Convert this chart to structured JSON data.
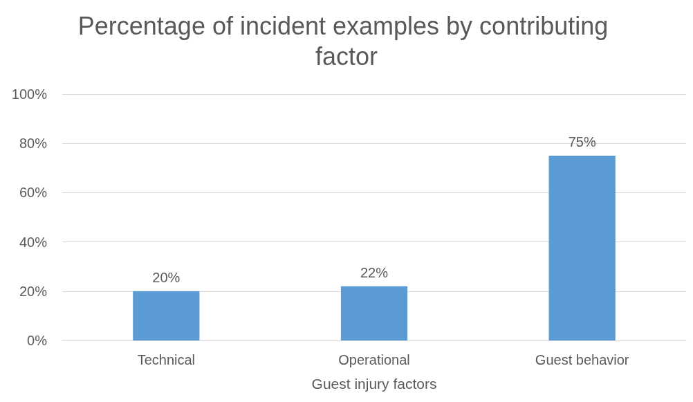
{
  "chart_data": {
    "type": "bar",
    "title": "Percentage of incident examples by contributing factor",
    "xlabel": "Guest injury factors",
    "categories": [
      "Technical",
      "Operational",
      "Guest behavior"
    ],
    "values": [
      20,
      22,
      75
    ],
    "value_labels": [
      "20%",
      "22%",
      "75%"
    ],
    "color": "#5b9bd5",
    "ylim": [
      0,
      100
    ],
    "yticks": [
      {
        "value": 0,
        "label": "0%"
      },
      {
        "value": 20,
        "label": "20%"
      },
      {
        "value": 40,
        "label": "40%"
      },
      {
        "value": 60,
        "label": "60%"
      },
      {
        "value": 80,
        "label": "80%"
      },
      {
        "value": 100,
        "label": "100%"
      }
    ],
    "grid": "y"
  }
}
